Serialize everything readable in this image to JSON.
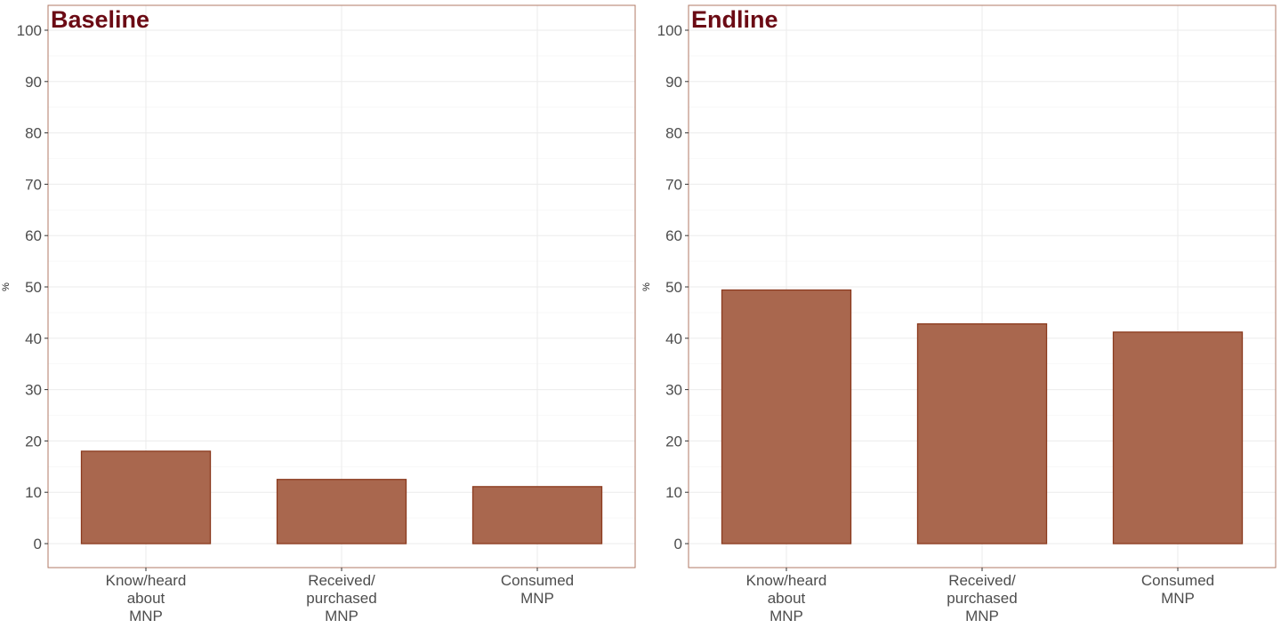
{
  "colors": {
    "bar_fill": "#a9674e",
    "bar_stroke": "#8b3a1e",
    "panel_border": "#b07a66",
    "title": "#6b0a14",
    "grid": "#ebebeb",
    "tick_text": "#4d4d4d"
  },
  "chart_data": [
    {
      "type": "bar",
      "title": "Baseline",
      "ylabel": "%",
      "xlabel": "",
      "ylim": [
        0,
        100
      ],
      "yticks": [
        "0",
        "10",
        "20",
        "30",
        "40",
        "50",
        "60",
        "70",
        "80",
        "90",
        "100"
      ],
      "categories": [
        "Know/heard\nabout\nMNP",
        "Received/\npurchased\nMNP",
        "Consumed\nMNP"
      ],
      "values": [
        18,
        12.5,
        11.1
      ],
      "grid": true
    },
    {
      "type": "bar",
      "title": "Endline",
      "ylabel": "%",
      "xlabel": "",
      "ylim": [
        0,
        100
      ],
      "yticks": [
        "0",
        "10",
        "20",
        "30",
        "40",
        "50",
        "60",
        "70",
        "80",
        "90",
        "100"
      ],
      "categories": [
        "Know/heard\nabout\nMNP",
        "Received/\npurchased\nMNP",
        "Consumed\nMNP"
      ],
      "values": [
        49.4,
        42.8,
        41.2
      ],
      "grid": true
    }
  ]
}
